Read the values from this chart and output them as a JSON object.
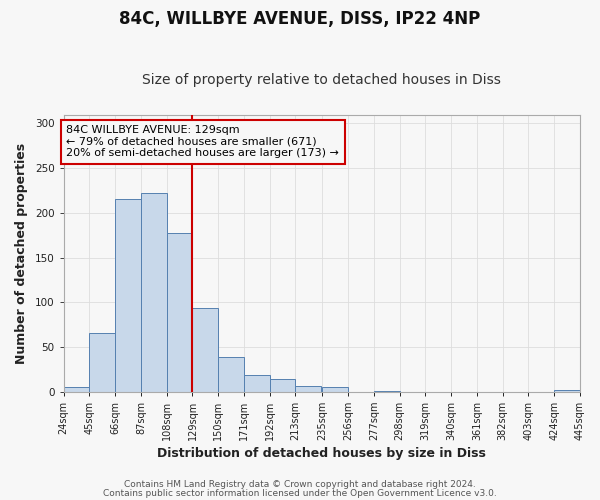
{
  "title": "84C, WILLBYE AVENUE, DISS, IP22 4NP",
  "subtitle": "Size of property relative to detached houses in Diss",
  "xlabel": "Distribution of detached houses by size in Diss",
  "ylabel": "Number of detached properties",
  "bin_edges": [
    24,
    45,
    66,
    87,
    108,
    129,
    150,
    171,
    192,
    213,
    235,
    256,
    277,
    298,
    319,
    340,
    361,
    382,
    403,
    424,
    445
  ],
  "bin_counts": [
    5,
    65,
    215,
    222,
    177,
    93,
    39,
    18,
    14,
    6,
    5,
    0,
    1,
    0,
    0,
    0,
    0,
    0,
    0,
    2
  ],
  "bar_color": "#c8d8ea",
  "bar_edge_color": "#5580b0",
  "reference_line_x": 129,
  "ann_line1": "84C WILLBYE AVENUE: 129sqm",
  "ann_line2": "← 79% of detached houses are smaller (671)",
  "ann_line3": "20% of semi-detached houses are larger (173) →",
  "annotation_box_color": "#cc0000",
  "ylim": [
    0,
    310
  ],
  "xlim": [
    24,
    445
  ],
  "tick_labels": [
    "24sqm",
    "45sqm",
    "66sqm",
    "87sqm",
    "108sqm",
    "129sqm",
    "150sqm",
    "171sqm",
    "192sqm",
    "213sqm",
    "235sqm",
    "256sqm",
    "277sqm",
    "298sqm",
    "319sqm",
    "340sqm",
    "361sqm",
    "382sqm",
    "403sqm",
    "424sqm",
    "445sqm"
  ],
  "footer_line1": "Contains HM Land Registry data © Crown copyright and database right 2024.",
  "footer_line2": "Contains public sector information licensed under the Open Government Licence v3.0.",
  "plot_bg_color": "#f7f7f7",
  "fig_bg_color": "#f7f7f7",
  "grid_color": "#dddddd",
  "title_fontsize": 12,
  "subtitle_fontsize": 10,
  "axis_label_fontsize": 9,
  "tick_fontsize": 7,
  "footer_fontsize": 6.5,
  "ann_fontsize": 8
}
